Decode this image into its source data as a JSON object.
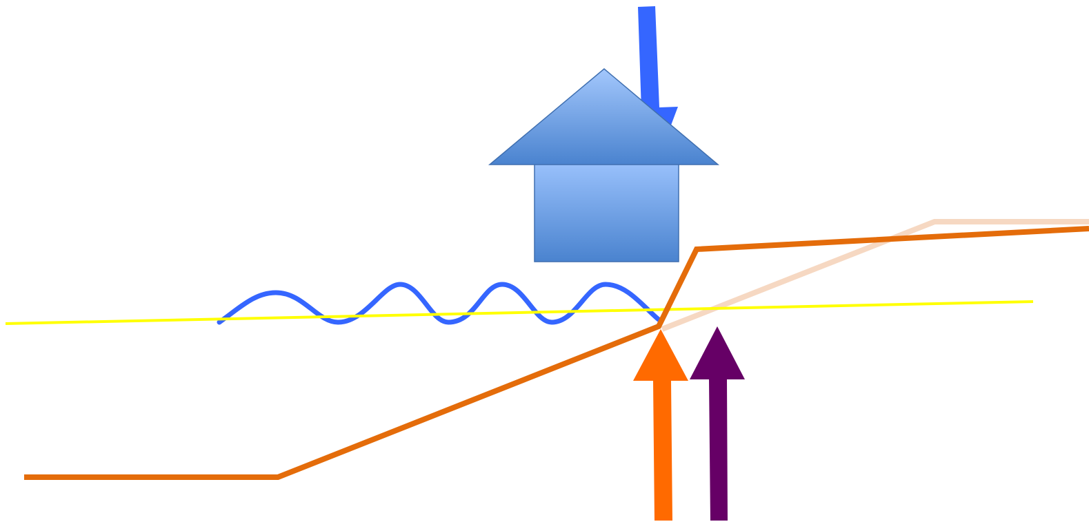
{
  "diagram": {
    "background": "#ffffff",
    "colors": {
      "house_light": "#98c0fb",
      "house_dark": "#4a83cf",
      "house_outline": "#3f6fb0",
      "rain_arrow": "#3566ff",
      "wave": "#3566ff",
      "water_line": "#ffff00",
      "ground_line": "#e46c0a",
      "ghost_line": "#f6d8c2",
      "up_arrow_orange": "#ff6a00",
      "up_arrow_purple": "#660066"
    },
    "elements": [
      {
        "name": "house",
        "icon": "house-icon"
      },
      {
        "name": "rain-arrow",
        "icon": "arrow-down-icon"
      },
      {
        "name": "wave-line",
        "icon": "wave-icon"
      },
      {
        "name": "water-level-line"
      },
      {
        "name": "ground-profile-line"
      },
      {
        "name": "ghost-profile-line"
      },
      {
        "name": "up-arrow-orange",
        "icon": "arrow-up-icon"
      },
      {
        "name": "up-arrow-purple",
        "icon": "arrow-up-icon"
      }
    ]
  }
}
